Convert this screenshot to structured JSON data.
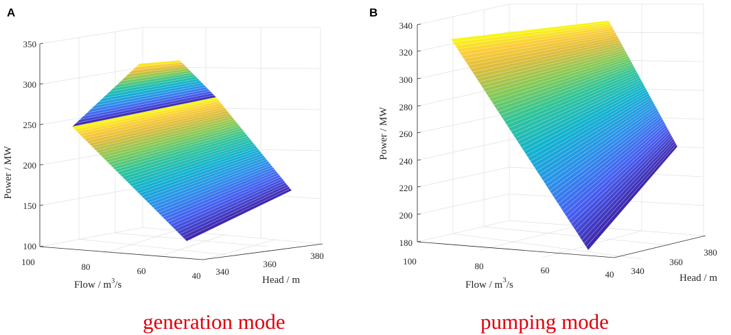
{
  "chart_data": [
    {
      "panel": "A",
      "type": "surface3d",
      "title": "generation mode",
      "xlabel": "Flow / m",
      "xlabel_sup": "3",
      "xlabel_tail": "/s",
      "ylabel": "Head / m",
      "zlabel": "Power / MW",
      "x_ticks": [
        "100",
        "80",
        "60",
        "40"
      ],
      "y_ticks": [
        "340",
        "360",
        "380"
      ],
      "z_ticks": [
        "100",
        "150",
        "200",
        "250",
        "300",
        "350"
      ],
      "xlim": [
        40,
        100
      ],
      "ylim": [
        330,
        390
      ],
      "zlim": [
        100,
        350
      ],
      "colormap": "parula",
      "power_range": [
        105,
        330
      ]
    },
    {
      "panel": "B",
      "type": "surface3d",
      "title": "pumping mode",
      "xlabel": "Flow / m",
      "xlabel_sup": "3",
      "xlabel_tail": "/s",
      "ylabel": "Head / m",
      "zlabel": "Power / MW",
      "x_ticks": [
        "100",
        "80",
        "60",
        "40"
      ],
      "y_ticks": [
        "340",
        "360",
        "380"
      ],
      "z_ticks": [
        "180",
        "200",
        "220",
        "240",
        "260",
        "280",
        "300",
        "320",
        "340"
      ],
      "xlim": [
        40,
        100
      ],
      "ylim": [
        330,
        390
      ],
      "zlim": [
        180,
        340
      ],
      "colormap": "parula",
      "power_range": [
        175,
        342
      ]
    }
  ],
  "colors": {
    "caption": "#e0000b",
    "axis": "#262626",
    "grid": "#e2e2e2"
  }
}
